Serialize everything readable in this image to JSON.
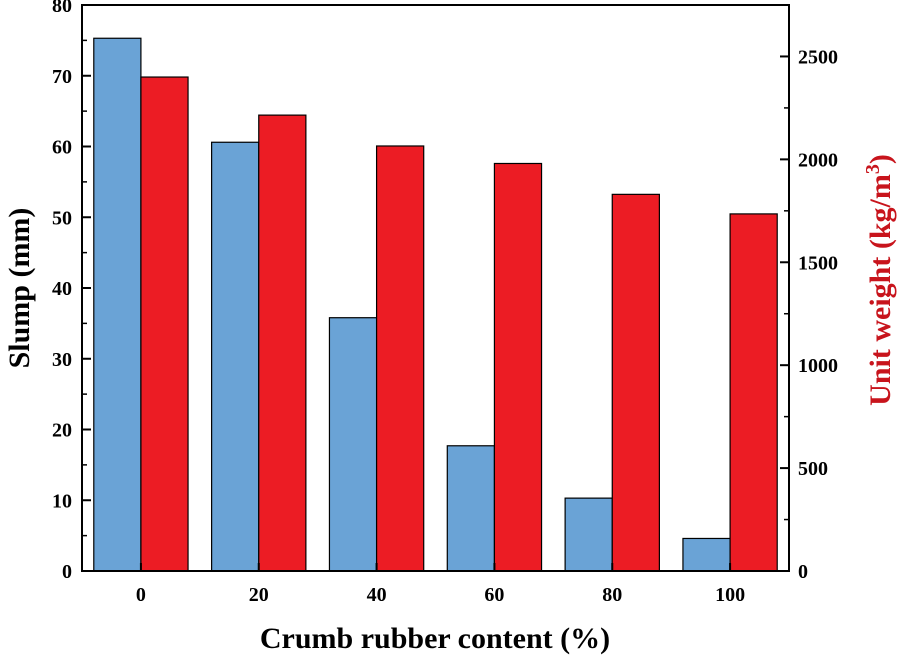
{
  "chart_data": {
    "type": "bar",
    "categories": [
      "0",
      "20",
      "40",
      "60",
      "80",
      "100"
    ],
    "series": [
      {
        "axis": "left",
        "color": "#6aa3d6",
        "values": [
          75.3,
          60.6,
          35.8,
          17.7,
          10.3,
          4.6
        ]
      },
      {
        "axis": "right",
        "color": "#ec1c24",
        "values": [
          2400,
          2215,
          2065,
          1980,
          1830,
          1735
        ]
      }
    ],
    "xlabel": "Crumb rubber content (%)",
    "ylabel": "Slump (mm)",
    "ylabel_right_prefix": "Unit weight (kg/m",
    "ylabel_right_sup": "3",
    "ylabel_right_suffix": ")",
    "ylabel_right_color": "#c8141c",
    "ylim": [
      0,
      80
    ],
    "ylim_right": [
      0,
      2750
    ],
    "yticks": [
      "0",
      "10",
      "20",
      "30",
      "40",
      "50",
      "60",
      "70",
      "80"
    ],
    "yticks_right": [
      "0",
      "500",
      "1000",
      "1500",
      "2000",
      "2500"
    ],
    "grid": false
  }
}
